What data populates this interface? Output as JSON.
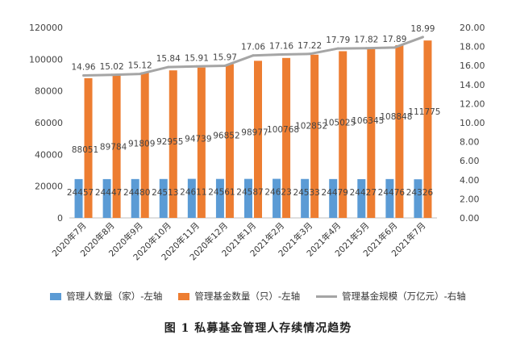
{
  "chart_data": {
    "type": "bar",
    "categories": [
      "2020年7月",
      "2020年8月",
      "2020年9月",
      "2020年10月",
      "2020年11月",
      "2020年12月",
      "2021年1月",
      "2021年2月",
      "2021年3月",
      "2021年4月",
      "2021年5月",
      "2021年6月",
      "2021年7月"
    ],
    "series": [
      {
        "name": "管理人数量（家）-左轴",
        "type": "bar",
        "axis": "left",
        "color": "#5b9bd5",
        "values": [
          24457,
          24447,
          24480,
          24513,
          24611,
          24561,
          24587,
          24623,
          24533,
          24479,
          24427,
          24476,
          24326
        ]
      },
      {
        "name": "管理基金数量（只）-左轴",
        "type": "bar",
        "axis": "left",
        "color": "#ed7d31",
        "values": [
          88051,
          89784,
          91809,
          92955,
          94739,
          96852,
          98977,
          100768,
          102852,
          105025,
          106345,
          108848,
          111775
        ]
      },
      {
        "name": "管理基金规模（万亿元）-右轴",
        "type": "line",
        "axis": "right",
        "color": "#a5a5a5",
        "values": [
          14.96,
          15.02,
          15.12,
          15.84,
          15.91,
          15.97,
          17.06,
          17.16,
          17.22,
          17.79,
          17.82,
          17.89,
          18.99
        ]
      }
    ],
    "y_left": {
      "min": 0,
      "max": 120000,
      "ticks": [
        "0",
        "20000",
        "40000",
        "60000",
        "80000",
        "100000",
        "120000"
      ]
    },
    "y_right": {
      "min": 0,
      "max": 20,
      "ticks": [
        "0.00",
        "2.00",
        "4.00",
        "6.00",
        "8.00",
        "10.00",
        "12.00",
        "14.00",
        "16.00",
        "18.00",
        "20.00"
      ]
    },
    "grid": false,
    "legend_position": "bottom",
    "caption": "图 1  私募基金管理人存续情况趋势"
  }
}
